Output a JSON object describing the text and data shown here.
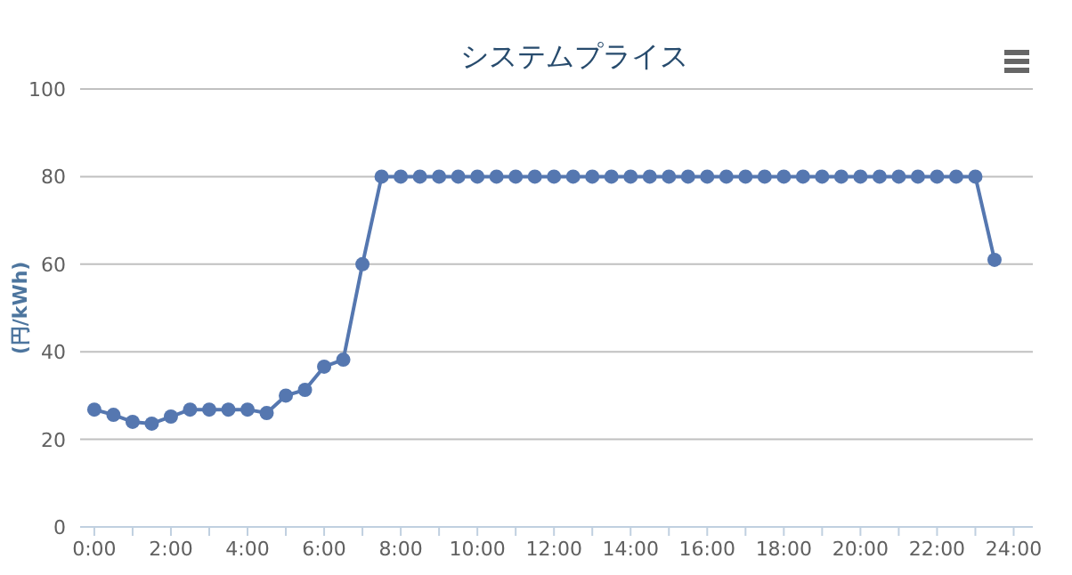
{
  "chart_data": {
    "type": "line",
    "title": "システムプライス",
    "ylabel": "(円/kWh)",
    "x": [
      0,
      0.5,
      1,
      1.5,
      2,
      2.5,
      3,
      3.5,
      4,
      4.5,
      5,
      5.5,
      6,
      6.5,
      7,
      7.5,
      8,
      8.5,
      9,
      9.5,
      10,
      10.5,
      11,
      11.5,
      12,
      12.5,
      13,
      13.5,
      14,
      14.5,
      15,
      15.5,
      16,
      16.5,
      17,
      17.5,
      18,
      18.5,
      19,
      19.5,
      20,
      20.5,
      21,
      21.5,
      22,
      22.5,
      23,
      23.5
    ],
    "series": [
      {
        "color": "#5577b0",
        "values": [
          26.8,
          25.6,
          24,
          23.6,
          25.2,
          26.8,
          26.8,
          26.8,
          26.8,
          26,
          30,
          31.3,
          36.6,
          38.2,
          60,
          80,
          80,
          80,
          80,
          80,
          80,
          80,
          80,
          80,
          80,
          80,
          80,
          80,
          80,
          80,
          80,
          80,
          80,
          80,
          80,
          80,
          80,
          80,
          80,
          80,
          80,
          80,
          80,
          80,
          80,
          80,
          80,
          61
        ]
      }
    ],
    "xlim": [
      -0.37,
      24.5
    ],
    "ylim": [
      0,
      100
    ],
    "xticks": [
      {
        "value": 0,
        "label": "0:00"
      },
      {
        "value": 1,
        "label": null
      },
      {
        "value": 2,
        "label": "2:00"
      },
      {
        "value": 3,
        "label": null
      },
      {
        "value": 4,
        "label": "4:00"
      },
      {
        "value": 5,
        "label": null
      },
      {
        "value": 6,
        "label": "6:00"
      },
      {
        "value": 7,
        "label": null
      },
      {
        "value": 8,
        "label": "8:00"
      },
      {
        "value": 9,
        "label": null
      },
      {
        "value": 10,
        "label": "10:00"
      },
      {
        "value": 11,
        "label": null
      },
      {
        "value": 12,
        "label": "12:00"
      },
      {
        "value": 13,
        "label": null
      },
      {
        "value": 14,
        "label": "14:00"
      },
      {
        "value": 15,
        "label": null
      },
      {
        "value": 16,
        "label": "16:00"
      },
      {
        "value": 17,
        "label": null
      },
      {
        "value": 18,
        "label": "18:00"
      },
      {
        "value": 19,
        "label": null
      },
      {
        "value": 20,
        "label": "20:00"
      },
      {
        "value": 21,
        "label": null
      },
      {
        "value": 22,
        "label": "22:00"
      },
      {
        "value": 23,
        "label": null
      },
      {
        "value": 24,
        "label": "24:00"
      }
    ],
    "yticks": [
      0,
      20,
      40,
      60,
      80,
      100
    ],
    "grid": "y",
    "marker": "circle",
    "line_style": "solid"
  }
}
